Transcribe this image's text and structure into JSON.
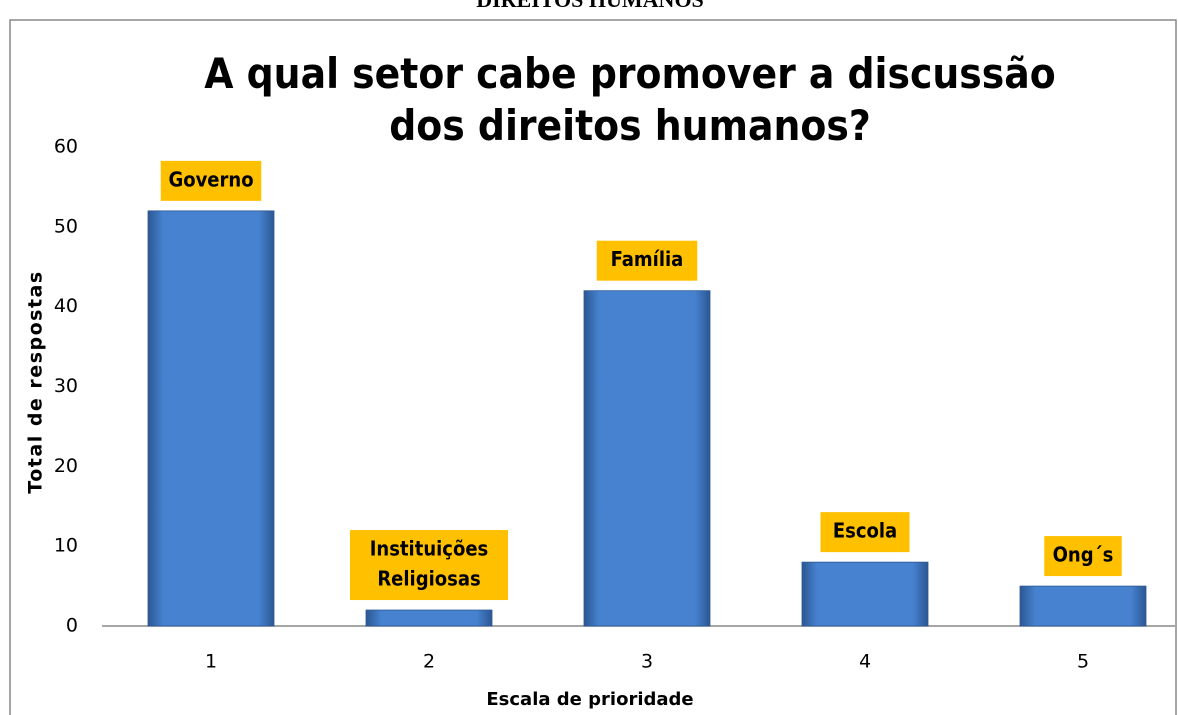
{
  "header": {
    "text": "DIREITOS HUMANOS"
  },
  "chart_data": {
    "type": "bar",
    "title": "A qual setor cabe promover a discussão dos direitos humanos?",
    "x_label": "Escala de prioridade",
    "y_label": "Total de respostas",
    "categories": [
      "1",
      "2",
      "3",
      "4",
      "5"
    ],
    "values": [
      52,
      2,
      42,
      8,
      5
    ],
    "bar_labels": [
      [
        "Governo"
      ],
      [
        "Instituições",
        "Religiosas"
      ],
      [
        "Família"
      ],
      [
        "Escola"
      ],
      [
        "Ong´s"
      ]
    ],
    "color": "#4a86d4",
    "label_color": "#ffc000",
    "ylim": [
      0,
      60
    ],
    "yticks": [
      0,
      10,
      20,
      30,
      40,
      50,
      60
    ],
    "grid": false
  }
}
